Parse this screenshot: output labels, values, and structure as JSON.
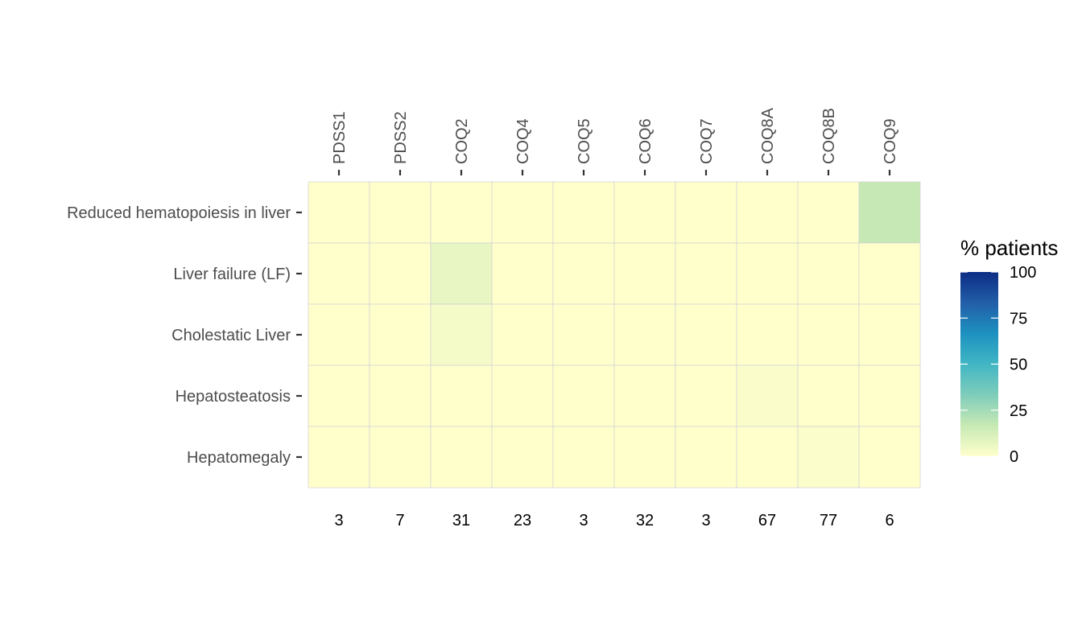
{
  "chart_data": {
    "type": "heatmap",
    "x_categories": [
      "PDSS1",
      "PDSS2",
      "COQ2",
      "COQ4",
      "COQ5",
      "COQ6",
      "COQ7",
      "COQ8A",
      "COQ8B",
      "COQ9"
    ],
    "x_counts": [
      "3",
      "7",
      "31",
      "23",
      "3",
      "32",
      "3",
      "67",
      "77",
      "6"
    ],
    "y_categories": [
      "Reduced hematopoiesis in liver",
      "Liver failure (LF)",
      "Cholestatic Liver",
      "Hepatosteatosis",
      "Hepatomegaly"
    ],
    "values": [
      [
        0,
        0,
        0,
        0,
        0,
        0,
        0,
        0,
        0,
        17
      ],
      [
        0,
        0,
        7,
        0,
        0,
        0,
        0,
        0,
        0,
        0
      ],
      [
        0,
        0,
        3,
        0,
        0,
        0,
        0,
        0,
        0,
        0
      ],
      [
        0,
        0,
        0,
        0,
        0,
        0,
        0,
        1.5,
        0,
        0
      ],
      [
        0,
        0,
        0,
        0,
        0,
        0,
        0,
        0,
        1.3,
        0
      ]
    ],
    "legend": {
      "title": "% patients",
      "min": 0,
      "max": 100,
      "ticks": [
        "0",
        "25",
        "50",
        "75",
        "100"
      ],
      "colors": [
        "#ffffcc",
        "#c7e9b4",
        "#7fcdbb",
        "#41b6c4",
        "#1d91c0",
        "#225ea8",
        "#0c2c84"
      ]
    },
    "grid": true,
    "legend_position": "right"
  }
}
